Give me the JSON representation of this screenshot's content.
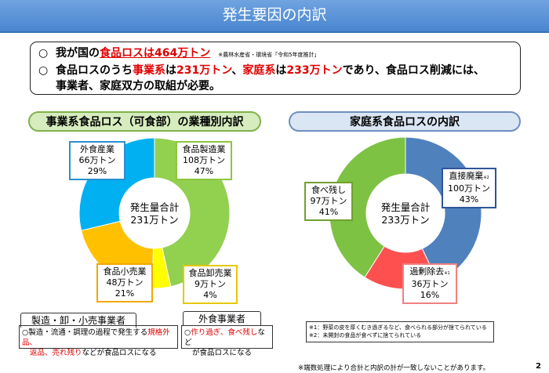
{
  "title": "発生要因の内訳",
  "summary": {
    "line1": {
      "bullet": "○",
      "a": "我が国の",
      "b": "食品ロスは464万トン",
      "note": "※農林水産省・環境省「令和5年度推計」"
    },
    "line2": {
      "bullet": "○",
      "a": "食品ロスのうち",
      "b": "事業系",
      "c": "は",
      "d": "231万トン",
      "e": "、",
      "f": "家庭系",
      "g": "は",
      "h": "233万トン",
      "i": "であり、食品ロス削減には、",
      "j": "事業者、家庭双方の取組が必要。"
    }
  },
  "left": {
    "heading": "事業系食品ロス（可食部）の業種別内訳",
    "center": [
      "発生量合計",
      "231万トン"
    ],
    "slices": [
      {
        "name": "食品製造業",
        "amount": "108万トン",
        "pct": "47%",
        "value": 47,
        "color": "#92d050"
      },
      {
        "name": "食品卸売業",
        "amount": "9万トン",
        "pct": "4%",
        "value": 4,
        "color": "#ffff00"
      },
      {
        "name": "食品小売業",
        "amount": "48万トン",
        "pct": "21%",
        "value": 21,
        "color": "#ffc000"
      },
      {
        "name": "外食産業",
        "amount": "66万トン",
        "pct": "29%",
        "value": 29,
        "color": "#00b0f0"
      }
    ],
    "label_borders": [
      "#8dc63f",
      "#e6c800",
      "#f0a800",
      "#2a8fd0"
    ]
  },
  "right": {
    "heading": "家庭系食品ロスの内訳",
    "center": [
      "発生量合計",
      "233万トン"
    ],
    "slices": [
      {
        "name": "直接廃棄",
        "mark": "※2",
        "amount": "100万トン",
        "pct": "43%",
        "value": 43,
        "color": "#4f81bd"
      },
      {
        "name": "過剰除去",
        "mark": "※1",
        "amount": "36万トン",
        "pct": "16%",
        "value": 16,
        "color": "#ff5050"
      },
      {
        "name": "食べ残し",
        "amount": "97万トン",
        "pct": "41%",
        "value": 41,
        "color": "#7dc242"
      }
    ],
    "label_borders": [
      "#2f5597",
      "#f08080",
      "#70a030"
    ]
  },
  "box1": {
    "tab": "製造・卸・小売事業者",
    "a": "○製造・流通・調理の過程で発生する",
    "b": "規格外品、",
    "c": "返品、売れ残り",
    "d": "などが食品ロスになる"
  },
  "box2": {
    "tab": "外食事業者",
    "a": "○",
    "b": "作り過ぎ、食べ残し",
    "c": "など",
    "d": "が食品ロスになる"
  },
  "notes": [
    "※1：野菜の皮を厚くむき過ぎるなど、食べられる部分が捨てられている",
    "※2：未開封の食品が食べずに捨てられている"
  ],
  "footer": "※端数処理により合計と内訳の計が一致しないことがあります。",
  "page": "2"
}
